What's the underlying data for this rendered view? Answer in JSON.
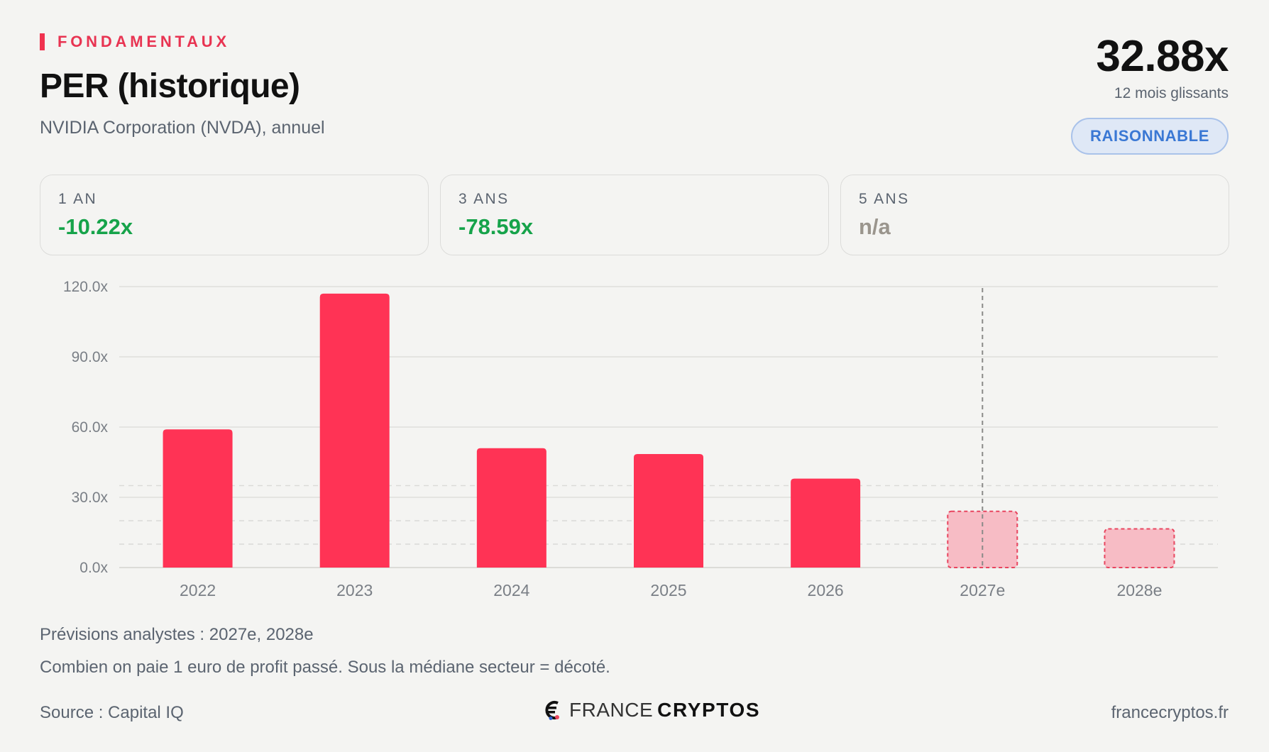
{
  "header": {
    "eyebrow": "FONDAMENTAUX",
    "title": "PER (historique)",
    "subtitle": "NVIDIA Corporation (NVDA), annuel",
    "current_value": "32.88x",
    "current_caption": "12 mois glissants",
    "badge": "RAISONNABLE"
  },
  "cards": [
    {
      "label": "1 AN",
      "value": "-10.22x"
    },
    {
      "label": "3 ANS",
      "value": "-78.59x"
    },
    {
      "label": "5 ANS",
      "value": "n/a"
    }
  ],
  "chart_data": {
    "type": "bar",
    "categories": [
      "2022",
      "2023",
      "2024",
      "2025",
      "2026",
      "2027e",
      "2028e"
    ],
    "values": [
      59,
      117,
      51,
      48.5,
      38,
      24,
      16.5
    ],
    "forecast": [
      false,
      false,
      false,
      false,
      false,
      true,
      true
    ],
    "y_ticks": [
      "0.0x",
      "30.0x",
      "60.0x",
      "90.0x",
      "120.0x"
    ],
    "ylim": [
      0,
      120
    ],
    "reference_lines": [
      35,
      20,
      10
    ],
    "forecast_divider_category": "2027e",
    "grid": true,
    "colors": {
      "actual": "#ff3355",
      "forecast_fill": "#f7bcc5",
      "forecast_stroke": "#e8455f"
    }
  },
  "notes": {
    "forecast": "Prévisions analystes : 2027e, 2028e",
    "explanation": "Combien on paie 1 euro de profit passé. Sous la médiane secteur = décoté."
  },
  "footer": {
    "source": "Source : Capital IQ",
    "logo_light": "FRANCE",
    "logo_bold": "CRYPTOS",
    "site": "francecryptos.fr"
  }
}
